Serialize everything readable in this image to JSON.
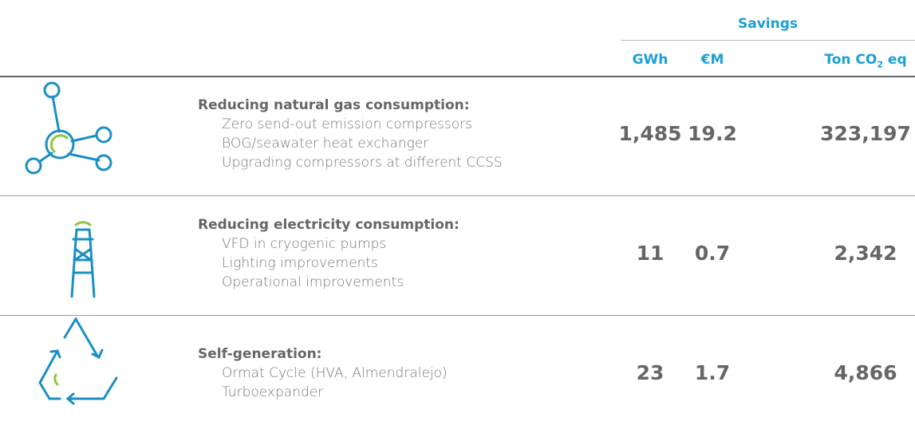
{
  "header": {
    "group": "Savings",
    "columns": [
      {
        "text": "GWh"
      },
      {
        "text": "€M"
      },
      {
        "text": "Ton CO",
        "sub": "2",
        "after": " eq"
      }
    ]
  },
  "rows": [
    {
      "title": "Reducing natural gas consumption:",
      "items": [
        "Zero send-out emission compressors",
        "BOG/seawater heat exchanger",
        "Upgrading compressors at different CCSS"
      ],
      "values": [
        "1,485",
        "19.2",
        "323,197"
      ]
    },
    {
      "title": "Reducing electricity consumption:",
      "items": [
        "VFD in cryogenic pumps",
        "Lighting improvements",
        "Operational improvements"
      ],
      "values": [
        "11",
        "0.7",
        "2,342"
      ]
    },
    {
      "title": "Self-generation:",
      "items": [
        "Ormat Cycle (HVA, Almendralejo)",
        "Turboexpander"
      ],
      "values": [
        "23",
        "1.7",
        "4,866"
      ]
    }
  ]
}
